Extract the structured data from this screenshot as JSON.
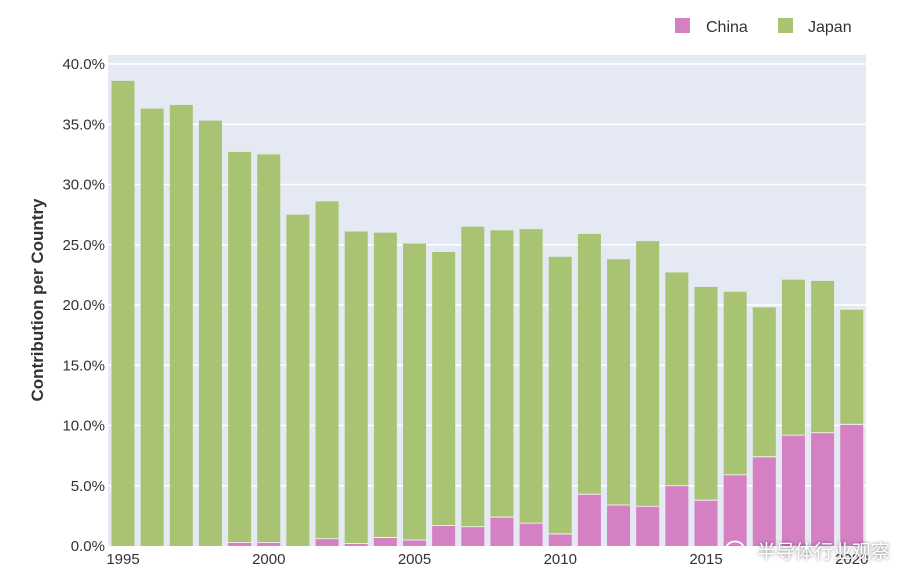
{
  "colors": {
    "china": "#d580c2",
    "japan": "#a8c472",
    "plot_bg": "#e4e9f4",
    "grid": "#ffffff"
  },
  "legend": {
    "china": "China",
    "japan": "Japan"
  },
  "watermark": {
    "text": "半导体行业观察",
    "icon": "wechat-icon"
  },
  "chart_data": {
    "type": "bar",
    "stacked": true,
    "xlabel": "",
    "ylabel": "Contribution per Country",
    "ylim": [
      0,
      40
    ],
    "yticks": [
      "0.0%",
      "5.0%",
      "10.0%",
      "15.0%",
      "20.0%",
      "25.0%",
      "30.0%",
      "35.0%",
      "40.0%"
    ],
    "xticks": [
      "1995",
      "2000",
      "2005",
      "2010",
      "2015",
      "2020"
    ],
    "legend_position": "top-right",
    "grid": true,
    "categories": [
      1995,
      1996,
      1997,
      1998,
      1999,
      2000,
      2001,
      2002,
      2003,
      2004,
      2005,
      2006,
      2007,
      2008,
      2009,
      2010,
      2011,
      2012,
      2013,
      2014,
      2015,
      2016,
      2017,
      2018,
      2019,
      2020
    ],
    "series": [
      {
        "name": "China",
        "values": [
          0.0,
          0.0,
          0.0,
          0.0,
          0.3,
          0.3,
          0.0,
          0.6,
          0.2,
          0.7,
          0.5,
          1.7,
          1.6,
          2.4,
          1.9,
          1.0,
          4.3,
          3.4,
          3.3,
          5.0,
          3.8,
          5.9,
          7.4,
          9.2,
          9.4,
          10.1
        ]
      },
      {
        "name": "Japan",
        "values": [
          38.6,
          36.3,
          36.6,
          35.3,
          32.4,
          32.2,
          27.5,
          28.0,
          25.9,
          25.3,
          24.6,
          22.7,
          24.9,
          23.8,
          24.4,
          23.0,
          21.6,
          20.4,
          22.0,
          17.7,
          17.7,
          15.2,
          12.4,
          12.9,
          12.6,
          9.5
        ]
      }
    ]
  }
}
